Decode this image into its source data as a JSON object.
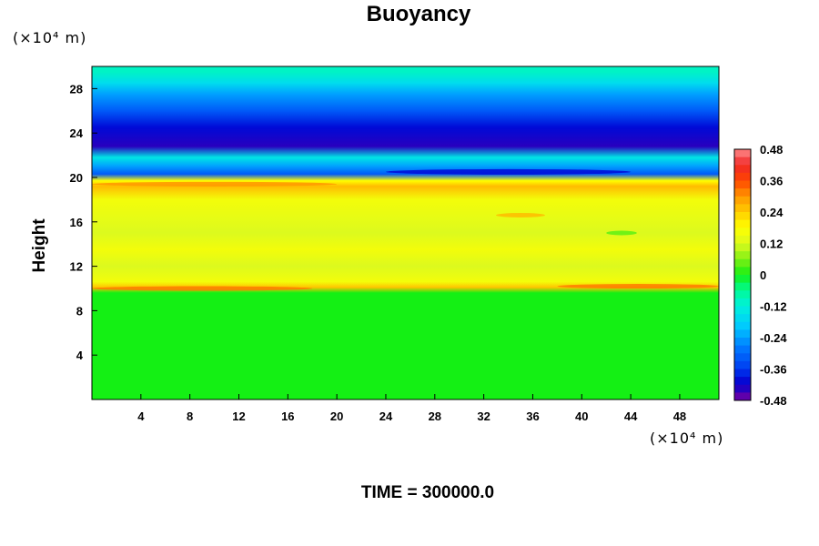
{
  "chart_data": {
    "type": "heatmap",
    "title": "Buoyancy",
    "ylabel": "Height",
    "xlabel": "",
    "x_unit": "(×10⁴ m)",
    "y_unit": "(×10⁴ m)",
    "footer": "TIME = 300000.0",
    "xlim": [
      0,
      51.2
    ],
    "ylim": [
      0,
      30
    ],
    "x_ticks": [
      "4",
      "8",
      "12",
      "16",
      "20",
      "24",
      "28",
      "32",
      "36",
      "40",
      "44",
      "48"
    ],
    "y_ticks": [
      "4",
      "8",
      "12",
      "16",
      "20",
      "24",
      "28"
    ],
    "colorbar": {
      "range": [
        -0.48,
        0.48
      ],
      "tick_labels": [
        "0.48",
        "0.36",
        "0.24",
        "0.12",
        "0",
        "-0.12",
        "-0.24",
        "-0.36",
        "-0.48"
      ],
      "tick_values": [
        0.48,
        0.36,
        0.24,
        0.12,
        0,
        -0.12,
        -0.24,
        -0.36,
        -0.48
      ]
    },
    "vertical_profile": [
      {
        "height": 0,
        "value": 0.0
      },
      {
        "height": 9.6,
        "value": 0.0
      },
      {
        "height": 10.1,
        "value": 0.25
      },
      {
        "height": 10.6,
        "value": 0.16
      },
      {
        "height": 12.0,
        "value": 0.12
      },
      {
        "height": 13.5,
        "value": 0.16
      },
      {
        "height": 15.0,
        "value": 0.12
      },
      {
        "height": 16.5,
        "value": 0.14
      },
      {
        "height": 18.0,
        "value": 0.16
      },
      {
        "height": 19.2,
        "value": 0.26
      },
      {
        "height": 19.7,
        "value": 0.18
      },
      {
        "height": 20.3,
        "value": -0.32
      },
      {
        "height": 21.0,
        "value": -0.24
      },
      {
        "height": 21.8,
        "value": -0.14
      },
      {
        "height": 22.8,
        "value": -0.44
      },
      {
        "height": 24.5,
        "value": -0.4
      },
      {
        "height": 26.0,
        "value": -0.32
      },
      {
        "height": 27.5,
        "value": -0.24
      },
      {
        "height": 28.5,
        "value": -0.16
      },
      {
        "height": 29.5,
        "value": -0.1
      },
      {
        "height": 30.0,
        "value": -0.1
      }
    ],
    "features": [
      {
        "x": [
          0,
          18
        ],
        "y": 10.0,
        "value": 0.32
      },
      {
        "x": [
          38,
          51.2
        ],
        "y": 10.2,
        "value": 0.32
      },
      {
        "x": [
          0,
          20
        ],
        "y": 19.4,
        "value": 0.3
      },
      {
        "x": [
          24,
          44
        ],
        "y": 20.5,
        "value": -0.4
      },
      {
        "x": [
          33,
          37
        ],
        "y": 16.6,
        "value": 0.26
      },
      {
        "x": [
          42,
          44.5
        ],
        "y": 15.0,
        "value": 0.04
      }
    ]
  }
}
